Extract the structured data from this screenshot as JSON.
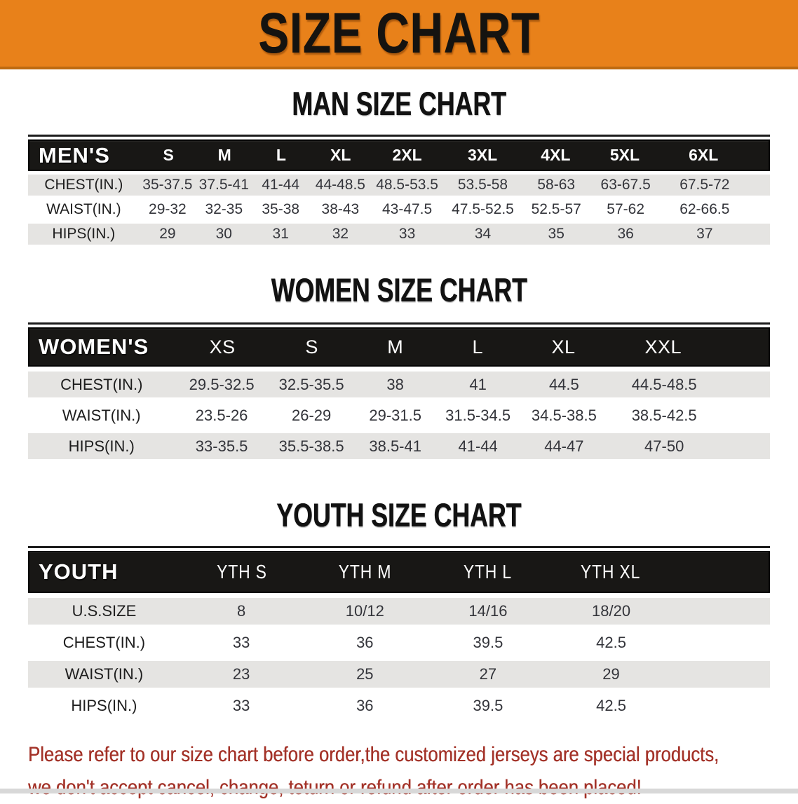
{
  "banner": {
    "title": "SIZE CHART"
  },
  "colors": {
    "banner_bg": "#E8811A",
    "header_bg": "#181715",
    "row_gray": "#E5E4E2",
    "footer_red": "#A33228"
  },
  "men": {
    "heading": "MAN SIZE CHART",
    "label": "MEN'S",
    "sizes": [
      "S",
      "M",
      "L",
      "XL",
      "2XL",
      "3XL",
      "4XL",
      "5XL",
      "6XL"
    ],
    "rows": [
      {
        "label": "CHEST(IN.)",
        "values": [
          "35-37.5",
          "37.5-41",
          "41-44",
          "44-48.5",
          "48.5-53.5",
          "53.5-58",
          "58-63",
          "63-67.5",
          "67.5-72"
        ]
      },
      {
        "label": "WAIST(IN.)",
        "values": [
          "29-32",
          "32-35",
          "35-38",
          "38-43",
          "43-47.5",
          "47.5-52.5",
          "52.5-57",
          "57-62",
          "62-66.5"
        ]
      },
      {
        "label": "HIPS(IN.)",
        "values": [
          "29",
          "30",
          "31",
          "32",
          "33",
          "34",
          "35",
          "36",
          "37"
        ]
      }
    ]
  },
  "women": {
    "heading": "WOMEN SIZE CHART",
    "label": "WOMEN'S",
    "sizes": [
      "XS",
      "S",
      "M",
      "L",
      "XL",
      "XXL"
    ],
    "rows": [
      {
        "label": "CHEST(IN.)",
        "values": [
          "29.5-32.5",
          "32.5-35.5",
          "38",
          "41",
          "44.5",
          "44.5-48.5"
        ]
      },
      {
        "label": "WAIST(IN.)",
        "values": [
          "23.5-26",
          "26-29",
          "29-31.5",
          "31.5-34.5",
          "34.5-38.5",
          "38.5-42.5"
        ]
      },
      {
        "label": "HIPS(IN.)",
        "values": [
          "33-35.5",
          "35.5-38.5",
          "38.5-41",
          "41-44",
          "44-47",
          "47-50"
        ]
      }
    ]
  },
  "youth": {
    "heading": "YOUTH SIZE CHART",
    "label": "YOUTH",
    "sizes": [
      "YTH S",
      "YTH M",
      "YTH L",
      "YTH XL"
    ],
    "rows": [
      {
        "label": "U.S.SIZE",
        "values": [
          "8",
          "10/12",
          "14/16",
          "18/20"
        ]
      },
      {
        "label": "CHEST(IN.)",
        "values": [
          "33",
          "36",
          "39.5",
          "42.5"
        ]
      },
      {
        "label": "WAIST(IN.)",
        "values": [
          "23",
          "25",
          "27",
          "29"
        ]
      },
      {
        "label": "HIPS(IN.)",
        "values": [
          "33",
          "36",
          "39.5",
          "42.5"
        ]
      }
    ]
  },
  "footer": {
    "line1": "Please refer to our size chart before order,the customized jerseys are special products,",
    "line2": "we don't accept cancel, change, teturn or refund after order has been placed!"
  }
}
